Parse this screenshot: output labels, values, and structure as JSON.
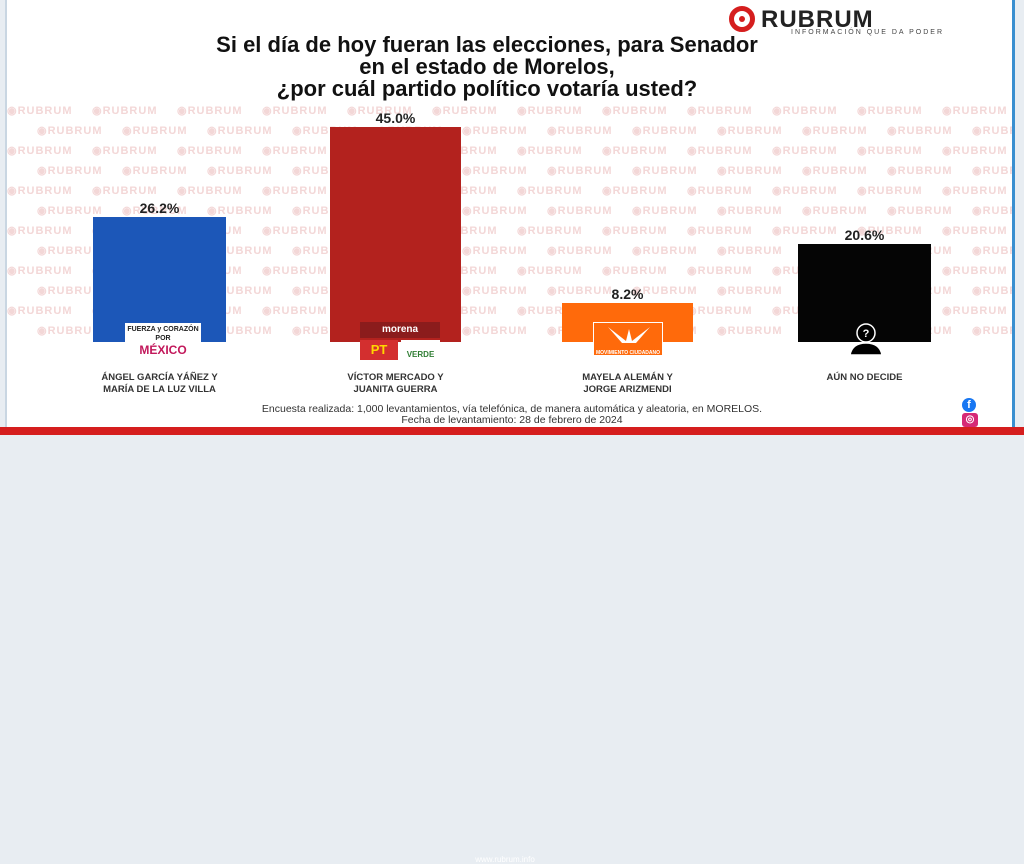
{
  "brand": {
    "name": "RUBRUM",
    "tagline": "INFORMACIÓN QUE DA PODER",
    "color": "#d51e1e"
  },
  "watermark": "RUBRUM",
  "chart_data": {
    "type": "bar",
    "title": "Si el día de hoy fueran las elecciones, para Senador\nen el estado de Morelos,\n¿por cuál partido político votaría usted?",
    "categories": [
      "ÁNGEL GARCÍA YÁÑEZ Y\nMARÍA DE LA LUZ VILLA",
      "VÍCTOR MERCADO Y\nJUANITA GUERRA",
      "MAYELA ALEMÁN Y\nJORGE ARIZMENDI",
      "AÚN NO DECIDE"
    ],
    "values": [
      26.2,
      45.0,
      8.2,
      20.6
    ],
    "value_labels": [
      "26.2%",
      "45.0%",
      "8.2%",
      "20.6%"
    ],
    "colors": [
      "#1c57b8",
      "#b3221e",
      "#ff6a0b",
      "#050505"
    ],
    "ylim": [
      0,
      45
    ],
    "grid": false,
    "legend": "none"
  },
  "party_logos": [
    {
      "icon": "fuerza-y-corazon-por-mexico-logo",
      "text_top": "FUERZA y CORAZÓN POR",
      "text_bottom": "MÉXICO"
    },
    {
      "icon": "morena-pt-verde-logo",
      "morena": "morena",
      "pt": "PT",
      "verde": "VERDE"
    },
    {
      "icon": "movimiento-ciudadano-logo",
      "text": "MOVIMIENTO CIUDADANO"
    },
    {
      "icon": "undecided-person-icon",
      "text": "?"
    }
  ],
  "footer": {
    "line1": "Encuesta realizada: 1,000 levantamientos, vía telefónica, de manera automática y aleatoria, en MORELOS.",
    "line2": "Fecha de levantamiento: 28 de febrero de 2024",
    "website": "www.rubrum.info"
  },
  "social": {
    "facebook": "f",
    "instagram": "◎"
  }
}
